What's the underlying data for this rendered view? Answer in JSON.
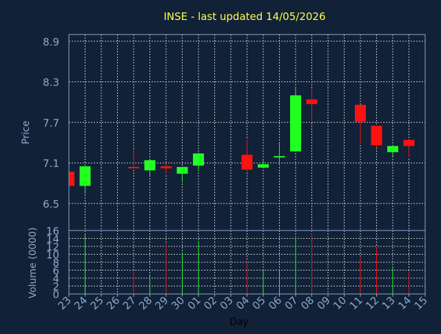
{
  "chart_data": {
    "type": "candlestick",
    "title": "INSE - last updated 14/05/2026",
    "xlabel": "Day",
    "price_panel": {
      "ylabel": "Price",
      "y_ticks": [
        "6.5",
        "7.1",
        "7.7",
        "8.3",
        "8.9"
      ],
      "ylim": [
        6.1,
        9.0
      ]
    },
    "volume_panel": {
      "ylabel": "Volume (0000)",
      "y_ticks": [
        "0",
        "2",
        "4",
        "6",
        "8",
        "10",
        "12",
        "14",
        "16"
      ],
      "ylim": [
        0,
        16
      ]
    },
    "x_tick_labels": [
      "23",
      "24",
      "25",
      "26",
      "27",
      "28",
      "29",
      "30",
      "01",
      "02",
      "03",
      "04",
      "05",
      "06",
      "07",
      "08",
      "09",
      "10",
      "11",
      "12",
      "13",
      "14",
      "15"
    ],
    "candles": [
      {
        "day": "23",
        "open": 6.97,
        "high": 6.97,
        "low": 6.76,
        "close": 6.76,
        "volume": 0
      },
      {
        "day": "24",
        "open": 6.76,
        "high": 7.05,
        "low": 6.64,
        "close": 7.05,
        "volume": 15.3
      },
      {
        "day": "27",
        "open": 7.04,
        "high": 7.31,
        "low": 7.02,
        "close": 7.02,
        "volume": 5.8
      },
      {
        "day": "28",
        "open": 6.99,
        "high": 7.14,
        "low": 6.92,
        "close": 7.14,
        "volume": 4.7
      },
      {
        "day": "29",
        "open": 7.05,
        "high": 7.07,
        "low": 6.93,
        "close": 7.02,
        "volume": 12.7
      },
      {
        "day": "30",
        "open": 6.94,
        "high": 7.04,
        "low": 6.81,
        "close": 7.04,
        "volume": 10.5
      },
      {
        "day": "01",
        "open": 7.06,
        "high": 7.25,
        "low": 6.98,
        "close": 7.24,
        "volume": 13.3
      },
      {
        "day": "04",
        "open": 7.22,
        "high": 7.45,
        "low": 6.97,
        "close": 7.0,
        "volume": 8.3
      },
      {
        "day": "05",
        "open": 7.03,
        "high": 7.15,
        "low": 7.02,
        "close": 7.08,
        "volume": 6.2
      },
      {
        "day": "06",
        "open": 7.19,
        "high": 7.38,
        "low": 7.06,
        "close": 7.2,
        "volume": 6.2
      },
      {
        "day": "07",
        "open": 7.27,
        "high": 8.21,
        "low": 7.26,
        "close": 8.1,
        "volume": 14.0
      },
      {
        "day": "08",
        "open": 8.04,
        "high": 8.19,
        "low": 7.71,
        "close": 7.97,
        "volume": 15.3
      },
      {
        "day": "11",
        "open": 7.96,
        "high": 7.96,
        "low": 7.38,
        "close": 7.71,
        "volume": 9.0
      },
      {
        "day": "12",
        "open": 7.65,
        "high": 7.65,
        "low": 7.32,
        "close": 7.36,
        "volume": 11.8
      },
      {
        "day": "13",
        "open": 7.26,
        "high": 7.35,
        "low": 7.2,
        "close": 7.35,
        "volume": 6.8
      },
      {
        "day": "14",
        "open": 7.44,
        "high": 7.44,
        "low": 7.18,
        "close": 7.35,
        "volume": 5.9
      }
    ]
  },
  "colors": {
    "background": "#112138",
    "title": "#ffff44",
    "axis_text": "#8fa9c8",
    "axis_line": "#8fa9c8",
    "grid": "#c8c8c8",
    "up": "#22ff22",
    "down": "#ff1111",
    "xlabel": "#000000"
  }
}
